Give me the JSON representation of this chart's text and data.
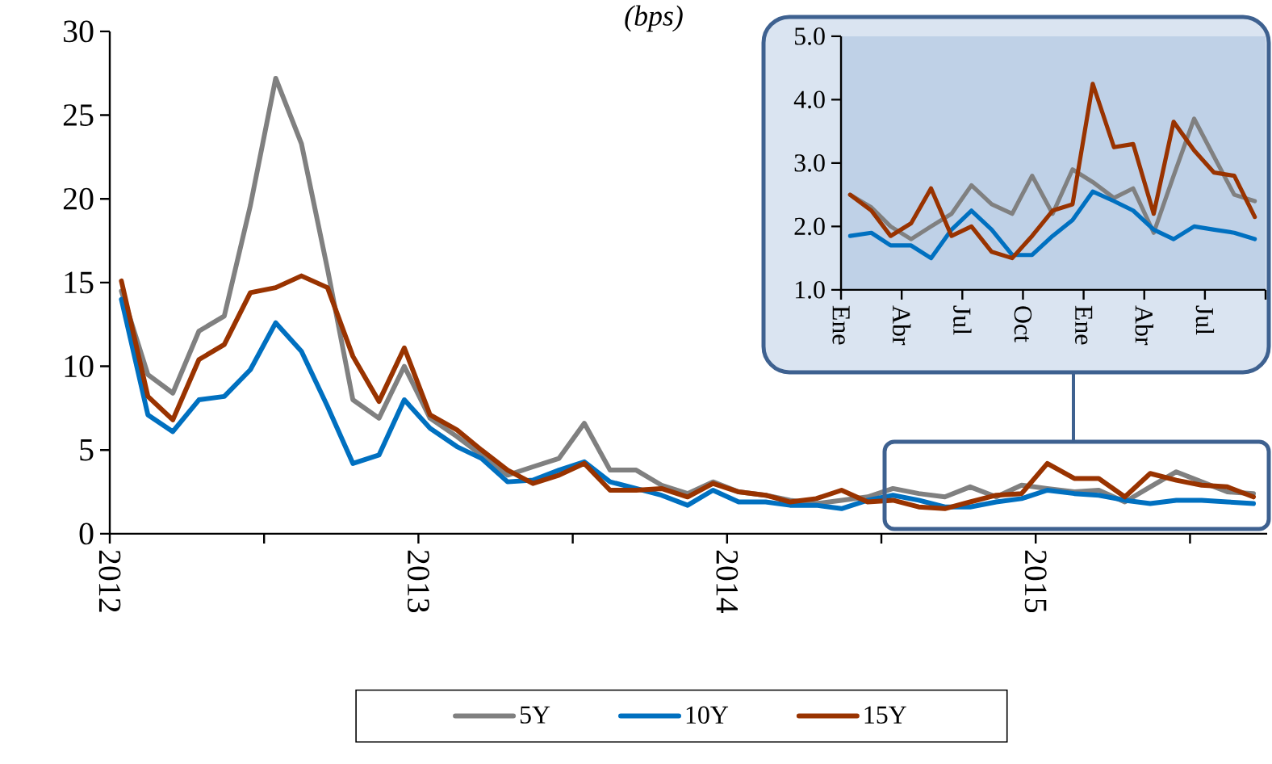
{
  "chart_data": [
    {
      "type": "line",
      "title": "(bps)",
      "x": [
        "2012-01-15",
        "2012-02-15",
        "2012-03-15",
        "2012-04-15",
        "2012-05-15",
        "2012-06-15",
        "2012-07-15",
        "2012-08-15",
        "2012-09-15",
        "2012-10-15",
        "2012-11-15",
        "2012-12-15",
        "2013-01-15",
        "2013-02-15",
        "2013-03-15",
        "2013-04-15",
        "2013-05-15",
        "2013-06-15",
        "2013-07-15",
        "2013-08-15",
        "2013-09-15",
        "2013-10-15",
        "2013-11-15",
        "2013-12-15",
        "2014-01-15",
        "2014-02-15",
        "2014-03-15",
        "2014-04-15",
        "2014-05-15",
        "2014-06-15",
        "2014-07-15",
        "2014-08-15",
        "2014-09-15",
        "2014-10-15",
        "2014-11-15",
        "2014-12-15",
        "2015-01-15",
        "2015-02-15",
        "2015-03-15",
        "2015-04-15",
        "2015-05-15",
        "2015-06-15",
        "2015-07-15",
        "2015-08-15",
        "2015-09-15"
      ],
      "series": [
        {
          "name": "5Y",
          "color": "#808080",
          "values": [
            14.5,
            9.5,
            8.4,
            12.1,
            13.0,
            19.6,
            27.2,
            23.3,
            15.8,
            8.0,
            6.9,
            10.0,
            6.9,
            5.8,
            4.7,
            3.5,
            4.0,
            4.5,
            6.6,
            3.8,
            3.8,
            2.9,
            2.4,
            3.1,
            2.5,
            2.3,
            2.0,
            1.8,
            2.0,
            2.2,
            2.7,
            2.4,
            2.2,
            2.8,
            2.2,
            2.9,
            2.7,
            2.5,
            2.6,
            1.9,
            2.8,
            3.7,
            3.1,
            2.5,
            2.4
          ]
        },
        {
          "name": "10Y",
          "color": "#0070c0",
          "values": [
            14.0,
            7.1,
            6.1,
            8.0,
            8.2,
            9.8,
            12.6,
            10.9,
            7.6,
            4.2,
            4.7,
            8.0,
            6.3,
            5.2,
            4.5,
            3.1,
            3.2,
            3.8,
            4.3,
            3.1,
            2.7,
            2.3,
            1.7,
            2.6,
            1.9,
            1.9,
            1.7,
            1.7,
            1.5,
            2.0,
            2.3,
            2.0,
            1.6,
            1.6,
            1.9,
            2.1,
            2.6,
            2.4,
            2.3,
            2.0,
            1.8,
            2.0,
            2.0,
            1.9,
            1.8
          ]
        },
        {
          "name": "15Y",
          "color": "#993300",
          "values": [
            15.1,
            8.2,
            6.8,
            10.4,
            11.3,
            14.4,
            14.7,
            15.4,
            14.7,
            10.6,
            7.9,
            11.1,
            7.1,
            6.2,
            5.0,
            3.8,
            3.0,
            3.5,
            4.2,
            2.6,
            2.6,
            2.7,
            2.2,
            3.0,
            2.5,
            2.3,
            1.9,
            2.1,
            2.6,
            1.9,
            2.0,
            1.6,
            1.5,
            1.9,
            2.3,
            2.4,
            4.2,
            3.3,
            3.3,
            2.2,
            3.6,
            3.2,
            2.9,
            2.8,
            2.2
          ]
        }
      ],
      "xlim": [
        "2012-01-01",
        "2015-10-01"
      ],
      "xticks": [
        {
          "value": "2012-01-01",
          "label": "2012"
        },
        {
          "value": "2012-07-01",
          "label": null
        },
        {
          "value": "2013-01-01",
          "label": "2013"
        },
        {
          "value": "2013-07-01",
          "label": null
        },
        {
          "value": "2014-01-01",
          "label": "2014"
        },
        {
          "value": "2014-07-01",
          "label": null
        },
        {
          "value": "2015-01-01",
          "label": "2015"
        },
        {
          "value": "2015-07-01",
          "label": null
        }
      ],
      "ylim": [
        0,
        30
      ],
      "yticks": [
        0,
        5,
        10,
        15,
        20,
        25,
        30
      ],
      "legend": "bottom"
    },
    {
      "type": "line",
      "x": [
        "2014-01-15",
        "2014-02-15",
        "2014-03-15",
        "2014-04-15",
        "2014-05-15",
        "2014-06-15",
        "2014-07-15",
        "2014-08-15",
        "2014-09-15",
        "2014-10-15",
        "2014-11-15",
        "2014-12-15",
        "2015-01-15",
        "2015-02-15",
        "2015-03-15",
        "2015-04-15",
        "2015-05-15",
        "2015-06-15",
        "2015-07-15",
        "2015-08-15",
        "2015-09-15"
      ],
      "series": [
        {
          "color": "#808080",
          "values": [
            2.5,
            2.3,
            2.0,
            1.8,
            2.0,
            2.2,
            2.65,
            2.35,
            2.2,
            2.8,
            2.2,
            2.9,
            2.7,
            2.45,
            2.6,
            1.9,
            2.8,
            3.7,
            3.1,
            2.5,
            2.4
          ]
        },
        {
          "color": "#0070c0",
          "values": [
            1.85,
            1.9,
            1.7,
            1.7,
            1.5,
            1.95,
            2.25,
            1.95,
            1.55,
            1.55,
            1.85,
            2.1,
            2.55,
            2.4,
            2.25,
            1.95,
            1.8,
            2.0,
            1.95,
            1.9,
            1.8
          ]
        },
        {
          "color": "#993300",
          "values": [
            2.5,
            2.25,
            1.85,
            2.05,
            2.6,
            1.85,
            2.0,
            1.6,
            1.5,
            1.85,
            2.25,
            2.35,
            4.25,
            3.25,
            3.3,
            2.2,
            3.65,
            3.2,
            2.85,
            2.8,
            2.15
          ]
        }
      ],
      "xlim": [
        "2014-01-01",
        "2015-10-01"
      ],
      "xticks": [
        {
          "value": "2014-01-01",
          "label": "Ene"
        },
        {
          "value": "2014-04-01",
          "label": "Abr"
        },
        {
          "value": "2014-07-01",
          "label": "Jul"
        },
        {
          "value": "2014-10-01",
          "label": "Oct"
        },
        {
          "value": "2015-01-01",
          "label": "Ene"
        },
        {
          "value": "2015-04-01",
          "label": "Abr"
        },
        {
          "value": "2015-07-01",
          "label": "Jul"
        },
        {
          "value": "2015-10-01",
          "label": null
        }
      ],
      "ylim": [
        1,
        5
      ],
      "yticks": [
        {
          "value": 1,
          "label": "1.0"
        },
        {
          "value": 2,
          "label": "2.0"
        },
        {
          "value": 3,
          "label": "3.0"
        },
        {
          "value": 4,
          "label": "4.0"
        },
        {
          "value": 5,
          "label": "5.0"
        }
      ]
    }
  ]
}
